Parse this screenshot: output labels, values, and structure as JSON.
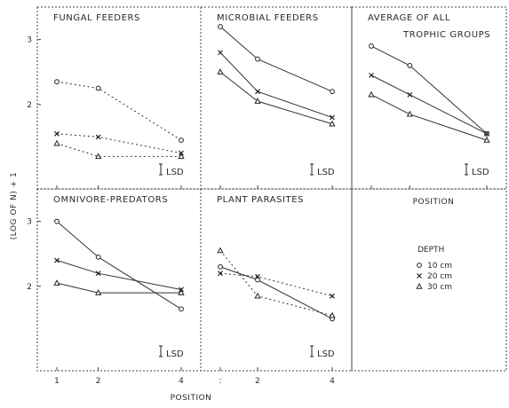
{
  "chart_data": [
    {
      "type": "line",
      "title": "FUNGAL FEEDERS",
      "x": [
        1,
        2,
        4
      ],
      "ylim": [
        0.7,
        3.5
      ],
      "lsd": "I LSD",
      "series": [
        {
          "symbol": "circle",
          "values": [
            2.35,
            2.25,
            1.45
          ],
          "dashed": true
        },
        {
          "symbol": "x",
          "values": [
            1.55,
            1.5,
            1.25
          ],
          "dashed": true
        },
        {
          "symbol": "triangle",
          "values": [
            1.4,
            1.2,
            1.2
          ],
          "dashed": true
        }
      ]
    },
    {
      "type": "line",
      "title": "MICROBIAL FEEDERS",
      "x": [
        1,
        2,
        4
      ],
      "ylim": [
        0.7,
        3.5
      ],
      "lsd": "I LSD",
      "series": [
        {
          "symbol": "circle",
          "values": [
            3.2,
            2.7,
            2.2
          ],
          "dashed": false
        },
        {
          "symbol": "x",
          "values": [
            2.8,
            2.2,
            1.8
          ],
          "dashed": false
        },
        {
          "symbol": "triangle",
          "values": [
            2.5,
            2.05,
            1.7
          ],
          "dashed": false
        }
      ]
    },
    {
      "type": "line",
      "title": "AVERAGE OF ALL",
      "subtitle": "TROPHIC GROUPS",
      "x": [
        1,
        2,
        4
      ],
      "ylim": [
        0.7,
        3.5
      ],
      "lsd": "I LSD",
      "series": [
        {
          "symbol": "circle",
          "values": [
            2.9,
            2.6,
            1.55
          ],
          "dashed": false
        },
        {
          "symbol": "x",
          "values": [
            2.45,
            2.15,
            1.55
          ],
          "dashed": false
        },
        {
          "symbol": "triangle",
          "values": [
            2.15,
            1.85,
            1.45
          ],
          "dashed": false
        }
      ]
    },
    {
      "type": "line",
      "title": "OMNIVORE-PREDATORS",
      "x": [
        1,
        2,
        4
      ],
      "ylim": [
        0.7,
        3.5
      ],
      "lsd": "I LSD",
      "series": [
        {
          "symbol": "circle",
          "values": [
            3.0,
            2.45,
            1.65
          ],
          "dashed": false
        },
        {
          "symbol": "x",
          "values": [
            2.4,
            2.2,
            1.95
          ],
          "dashed": false
        },
        {
          "symbol": "triangle",
          "values": [
            2.05,
            1.9,
            1.9
          ],
          "dashed": false
        }
      ]
    },
    {
      "type": "line",
      "title": "PLANT PARASITES",
      "x": [
        1,
        2,
        4
      ],
      "ylim": [
        0.7,
        3.5
      ],
      "lsd": "I LSD",
      "series": [
        {
          "symbol": "circle",
          "values": [
            2.3,
            2.1,
            1.5
          ],
          "dashed": false
        },
        {
          "symbol": "x",
          "values": [
            2.2,
            2.15,
            1.85
          ],
          "dashed": true
        },
        {
          "symbol": "triangle",
          "values": [
            2.55,
            1.85,
            1.55
          ],
          "dashed": true
        }
      ]
    }
  ],
  "axes": {
    "ylabel": "(LOG OF N) + 1",
    "y_ticks": [
      "2",
      "3"
    ],
    "x_ticks": [
      "1",
      "2",
      "4"
    ],
    "bottom_panel_x_ticks": [
      ":",
      "2",
      "4"
    ],
    "xlabel": "POSITION"
  },
  "legend": {
    "title": "DEPTH",
    "entries": [
      {
        "symbol": "circle",
        "label": "10 cm"
      },
      {
        "symbol": "x",
        "label": "20 cm"
      },
      {
        "symbol": "triangle",
        "label": "30 cm"
      }
    ]
  },
  "empty_panel_label": "POSITION"
}
